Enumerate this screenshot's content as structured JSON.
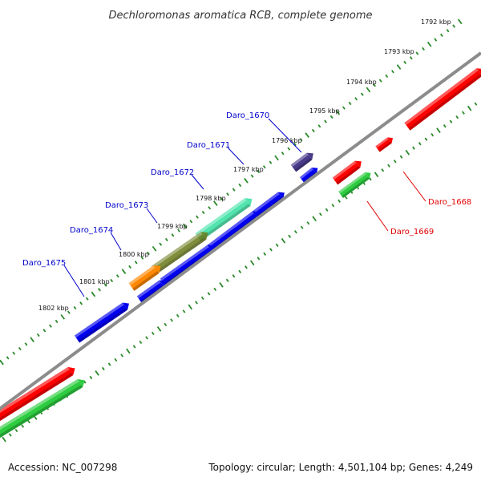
{
  "title": "Dechloromonas aromatica RCB, complete genome",
  "footer": {
    "accession": "Accession: NC_007298",
    "summary": "Topology: circular; Length: 4,501,104 bp; Genes: 4,249"
  },
  "colors": {
    "backbone": "#8c8c8c",
    "tick_track": "#2a8a2a",
    "label_forward": "#0000cc",
    "label_reverse": "#e00000",
    "gene_red": "#ff0000",
    "gene_green": "#2ecc40",
    "gene_blue": "#0000ee",
    "gene_purple": "#4a3a8a",
    "gene_teal": "#33e0a0",
    "gene_olive": "#6b7a1a",
    "gene_orange": "#ff8800"
  },
  "ticks": [
    {
      "label": "1792 kbp"
    },
    {
      "label": "1793 kbp"
    },
    {
      "label": "1794 kbp"
    },
    {
      "label": "1795 kbp"
    },
    {
      "label": "1796 kbp"
    },
    {
      "label": "1797 kbp"
    },
    {
      "label": "1798 kbp"
    },
    {
      "label": "1799 kbp"
    },
    {
      "label": "1800 kbp"
    },
    {
      "label": "1801 kbp"
    },
    {
      "label": "1802 kbp"
    }
  ],
  "gene_labels": [
    {
      "label": "Daro_1670",
      "strand": "forward"
    },
    {
      "label": "Daro_1671",
      "strand": "forward"
    },
    {
      "label": "Daro_1672",
      "strand": "forward"
    },
    {
      "label": "Daro_1673",
      "strand": "forward"
    },
    {
      "label": "Daro_1674",
      "strand": "forward"
    },
    {
      "label": "Daro_1675",
      "strand": "forward"
    },
    {
      "label": "Daro_1668",
      "strand": "reverse"
    },
    {
      "label": "Daro_1669",
      "strand": "reverse"
    }
  ]
}
